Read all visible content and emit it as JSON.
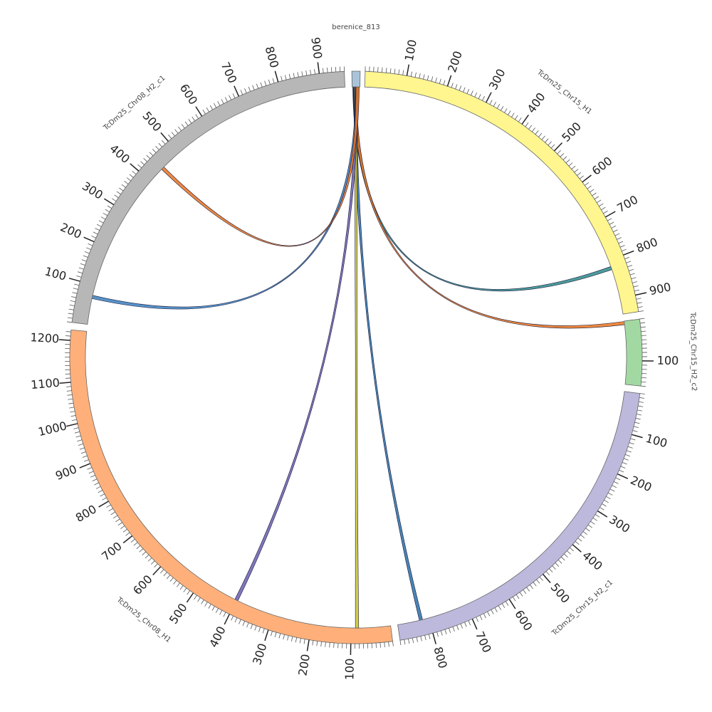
{
  "chart_data": {
    "type": "circos",
    "segments": [
      {
        "name": "berenice_813",
        "length": 20,
        "color": "#a9c4d9",
        "label_visible": true,
        "ticks": false
      },
      {
        "name": "TcDm25_Chr15_H1",
        "length": 940,
        "color": "#fff68f",
        "label_visible": true,
        "ticks": true
      },
      {
        "name": "TcDm25_Chr15_H2_c2",
        "length": 160,
        "color": "#a2d9a2",
        "label_visible": true,
        "ticks": true
      },
      {
        "name": "TcDm25_Chr15_H2_c1",
        "length": 880,
        "color": "#bdb9dc",
        "label_visible": true,
        "ticks": true
      },
      {
        "name": "TcDm25_Chr08_H1",
        "length": 1225,
        "color": "#ffb07a",
        "label_visible": true,
        "ticks": true
      },
      {
        "name": "TcDm25_Chr08_H2_c1",
        "length": 960,
        "color": "#b7b7b7",
        "label_visible": true,
        "ticks": true
      }
    ],
    "links": [
      {
        "source": "berenice_813",
        "source_pos": 6,
        "target": "TcDm25_Chr15_H1",
        "target_pos": 820,
        "color": "#2e8b8b"
      },
      {
        "source": "berenice_813",
        "source_pos": 7,
        "target": "TcDm25_Chr15_H2_c2",
        "target_pos": 5,
        "color": "#e8731f"
      },
      {
        "source": "berenice_813",
        "source_pos": 8,
        "target": "TcDm25_Chr15_H2_c1",
        "target_pos": 820,
        "color": "#2a6fa8"
      },
      {
        "source": "berenice_813",
        "source_pos": 10,
        "target": "TcDm25_Chr08_H1",
        "target_pos": 85,
        "color": "#c9c430"
      },
      {
        "source": "berenice_813",
        "source_pos": 12,
        "target": "TcDm25_Chr08_H1",
        "target_pos": 400,
        "color": "#6a5fb0"
      },
      {
        "source": "berenice_813",
        "source_pos": 13,
        "target": "TcDm25_Chr08_H2_c1",
        "target_pos": 70,
        "color": "#3a7fc0"
      },
      {
        "source": "berenice_813",
        "source_pos": 14,
        "target": "TcDm25_Chr08_H2_c1",
        "target_pos": 445,
        "color": "#e8731f"
      }
    ]
  }
}
